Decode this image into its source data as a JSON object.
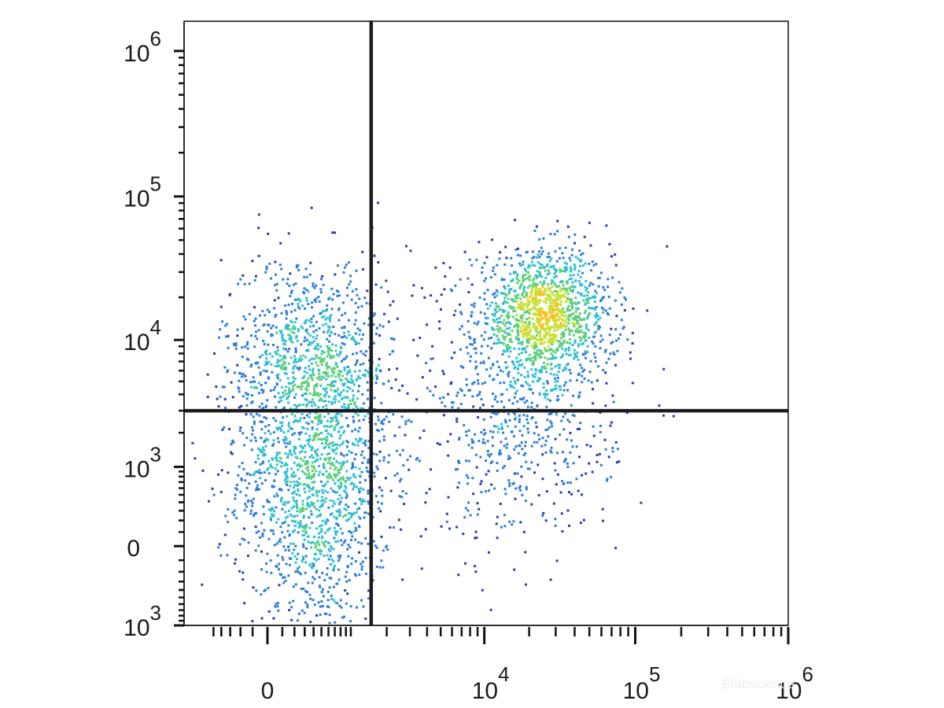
{
  "chart_data": {
    "type": "scatter",
    "style": "flow-cytometry-density-plot",
    "title": "",
    "xlabel": "",
    "ylabel": "",
    "x_scale": "biexponential",
    "y_scale": "biexponential",
    "xlim": [
      -1000,
      1000000
    ],
    "ylim": [
      -1000,
      1600000
    ],
    "x_tick_labels": [
      {
        "value": 0,
        "base": "0",
        "exp": ""
      },
      {
        "value": 10000,
        "base": "10",
        "exp": "4"
      },
      {
        "value": 100000,
        "base": "10",
        "exp": "5"
      },
      {
        "value": 1000000,
        "base": "10",
        "exp": "6"
      }
    ],
    "y_tick_labels": [
      {
        "value": -1000,
        "base": "10",
        "exp": "3"
      },
      {
        "value": 0,
        "base": "0",
        "exp": ""
      },
      {
        "value": 1000,
        "base": "10",
        "exp": "3"
      },
      {
        "value": 10000,
        "base": "10",
        "exp": "4"
      },
      {
        "value": 100000,
        "base": "10",
        "exp": "5"
      },
      {
        "value": 1000000,
        "base": "10",
        "exp": "6"
      }
    ],
    "quadrant_gate": {
      "x": 1500,
      "y": 3000
    },
    "populations": [
      {
        "x_center": 400,
        "y_center": 800,
        "x_spread": 0.25,
        "y_spread": 0.55,
        "relative_density": 1.0
      },
      {
        "x_center": 320,
        "y_center": 8000,
        "x_spread": 0.28,
        "y_spread": 0.35,
        "relative_density": 0.45
      },
      {
        "x_center": 25000,
        "y_center": 15000,
        "x_spread": 0.22,
        "y_spread": 0.22,
        "relative_density": 0.9
      },
      {
        "x_center": 18000,
        "y_center": 2000,
        "x_spread": 0.3,
        "y_spread": 0.35,
        "relative_density": 0.3
      },
      {
        "x_center": 5000,
        "y_center": 3000,
        "x_spread": 0.6,
        "y_spread": 0.6,
        "relative_density": 0.12
      }
    ],
    "density_colors": [
      "#2a3fae",
      "#2f7fd6",
      "#34c0d0",
      "#5fcf7a",
      "#c8e03a",
      "#f6c21c",
      "#f07a19",
      "#e61e1e"
    ],
    "grid": false,
    "legend": "none"
  },
  "watermark": "Elabscience"
}
